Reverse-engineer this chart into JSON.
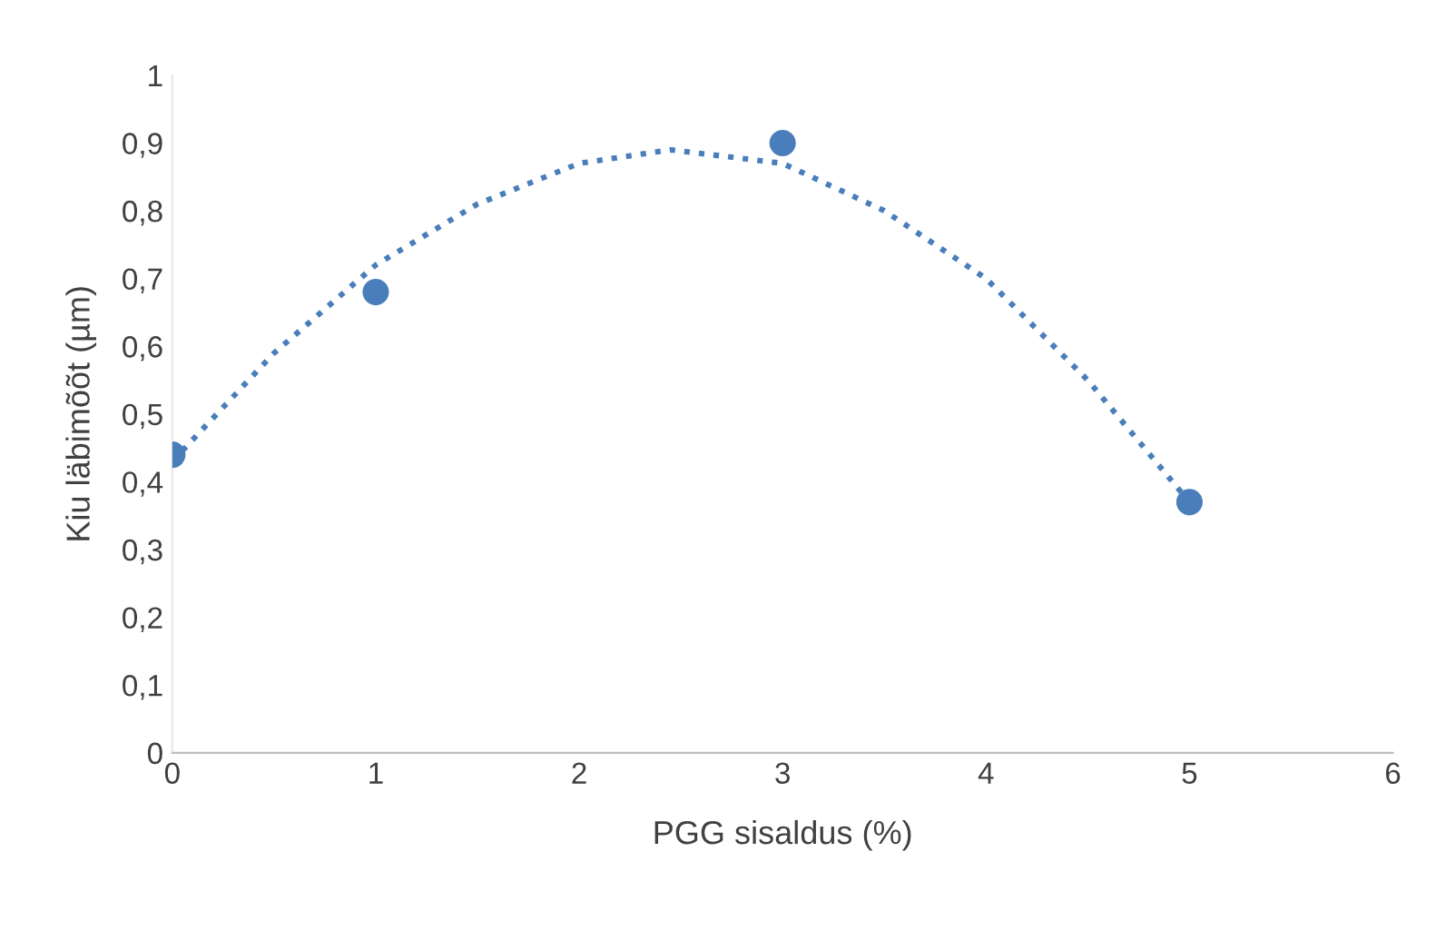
{
  "chart_data": {
    "type": "scatter",
    "xlabel": "PGG sisaldus (%)",
    "ylabel": "Kiu läbimõõt (µm)",
    "xlim": [
      0,
      6
    ],
    "xticks": [
      0,
      1,
      2,
      3,
      4,
      5,
      6
    ],
    "ylim": [
      0,
      1
    ],
    "yticks": [
      {
        "value": 0,
        "label": "0"
      },
      {
        "value": 0.1,
        "label": "0,1"
      },
      {
        "value": 0.2,
        "label": "0,2"
      },
      {
        "value": 0.3,
        "label": "0,3"
      },
      {
        "value": 0.4,
        "label": "0,4"
      },
      {
        "value": 0.5,
        "label": "0,5"
      },
      {
        "value": 0.6,
        "label": "0,6"
      },
      {
        "value": 0.7,
        "label": "0,7"
      },
      {
        "value": 0.8,
        "label": "0,8"
      },
      {
        "value": 0.9,
        "label": "0,9"
      },
      {
        "value": 1,
        "label": "1"
      }
    ],
    "grid": false,
    "legend": false,
    "marker": "circle",
    "series": [
      {
        "color": "#4a7ebb",
        "x": [
          0,
          1,
          3,
          5
        ],
        "values": [
          0.44,
          0.68,
          0.9,
          0.37
        ]
      },
      {
        "type": "line",
        "color": "#4a7ebb",
        "line_style": "dotted",
        "marker": "none",
        "x": [
          0,
          0.5,
          1,
          1.5,
          2,
          2.45,
          3,
          3.5,
          4,
          4.5,
          5
        ],
        "values": [
          0.43,
          0.59,
          0.72,
          0.81,
          0.87,
          0.89,
          0.87,
          0.8,
          0.7,
          0.55,
          0.37
        ]
      }
    ]
  }
}
